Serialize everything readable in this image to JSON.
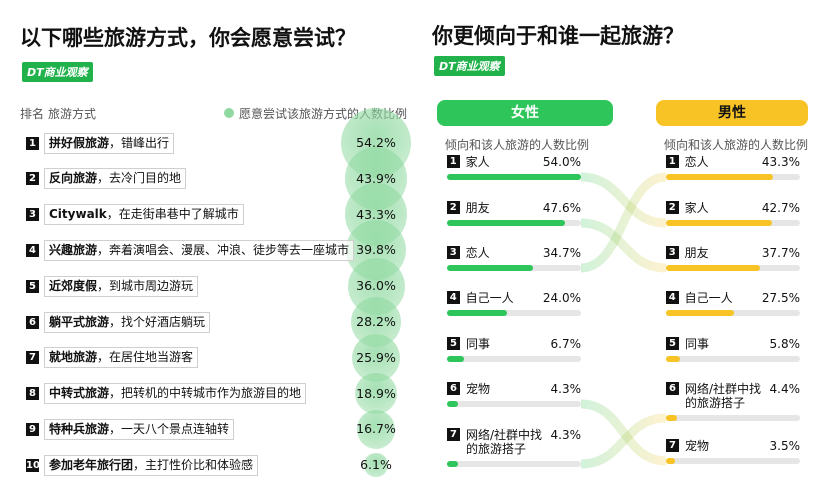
{
  "logo": "DT商业观察",
  "right_title": "你更倾向于和谁一起旅游？",
  "chart_data": [
    {
      "type": "bubble",
      "title": "以下哪些旅游方式，你会愿意尝试？",
      "rank_header": "排名",
      "name_header": "旅游方式",
      "legend": "愿意尝试该旅游方式的人数比例",
      "color": "#8fd9a0",
      "ranks": [
        1,
        2,
        3,
        4,
        5,
        6,
        7,
        8,
        9,
        10
      ],
      "categories": [
        "拼好假旅游",
        "反向旅游",
        "Citywalk",
        "兴趣旅游",
        "近郊度假",
        "躺平式旅游",
        "就地旅游",
        "中转式旅游",
        "特种兵旅游",
        "参加老年旅行团"
      ],
      "details": [
        "，错峰出行",
        "，去冷门目的地",
        "，在走街串巷中了解城市",
        "，奔着演唱会、漫展、冲浪、徒步等去一座城市",
        "，到城市周边游玩",
        "，找个好酒店躺玩",
        "，在居住地当游客",
        "，把转机的中转城市作为旅游目的地",
        "，一天八个景点连轴转",
        "，主打性价比和体验感"
      ],
      "values": [
        54.2,
        43.9,
        43.3,
        39.8,
        36.0,
        28.2,
        25.9,
        18.9,
        16.7,
        6.1
      ],
      "value_labels": [
        "54.2%",
        "43.9%",
        "43.3%",
        "39.8%",
        "36.0%",
        "28.2%",
        "25.9%",
        "18.9%",
        "16.7%",
        "6.1%"
      ]
    },
    {
      "type": "bar",
      "title": "女性",
      "subtitle": "倾向和该人旅游的人数比例",
      "color": "#2ec55a",
      "header_color": "#2ec55a",
      "ranks": [
        1,
        2,
        3,
        4,
        5,
        6,
        7
      ],
      "categories": [
        "家人",
        "朋友",
        "恋人",
        "自己一人",
        "同事",
        "宠物",
        "网络/社群中找的旅游搭子"
      ],
      "values": [
        54.0,
        47.6,
        34.7,
        24.0,
        6.7,
        4.3,
        4.3
      ],
      "value_labels": [
        "54.0%",
        "47.6%",
        "34.7%",
        "24.0%",
        "6.7%",
        "4.3%",
        "4.3%"
      ]
    },
    {
      "type": "bar",
      "title": "男性",
      "subtitle": "倾向和该人旅游的人数比例",
      "color": "#f7c325",
      "header_color": "#f7c325",
      "ranks": [
        1,
        2,
        3,
        4,
        5,
        6,
        7
      ],
      "categories": [
        "恋人",
        "家人",
        "朋友",
        "自己一人",
        "同事",
        "网络/社群中找的旅游搭子",
        "宠物"
      ],
      "values": [
        43.3,
        42.7,
        37.7,
        27.5,
        5.8,
        4.4,
        3.5
      ],
      "value_labels": [
        "43.3%",
        "42.7%",
        "37.7%",
        "27.5%",
        "5.8%",
        "4.4%",
        "3.5%"
      ]
    }
  ]
}
